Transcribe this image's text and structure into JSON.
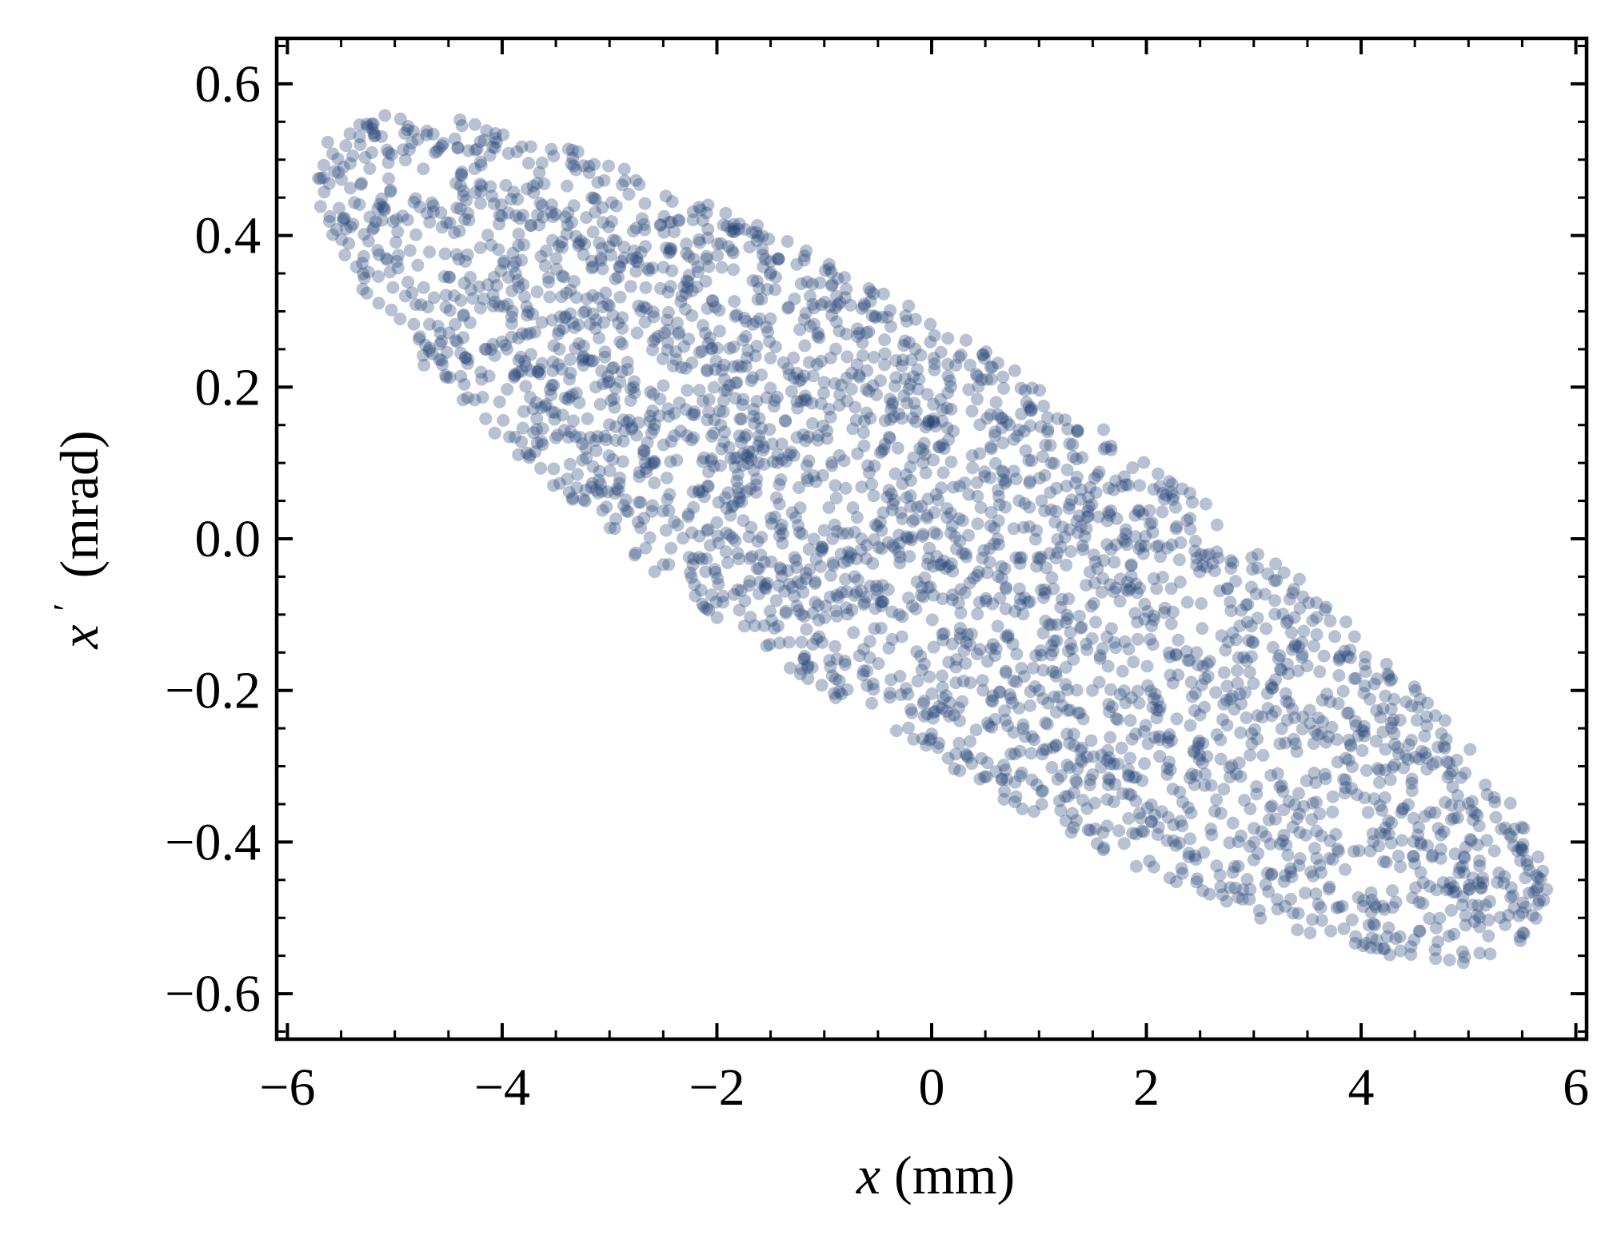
{
  "chart_data": {
    "type": "scatter",
    "title": "",
    "xlabel_symbol": "x",
    "xlabel_unit": "(mm)",
    "ylabel_symbol": "x",
    "ylabel_prime": "′",
    "ylabel_unit": "(mrad)",
    "xlim": [
      -6.1,
      6.1
    ],
    "ylim": [
      -0.66,
      0.66
    ],
    "x_ticks": [
      -6,
      -4,
      -2,
      0,
      2,
      4,
      6
    ],
    "x_tick_labels": [
      "−6",
      "−4",
      "−2",
      "0",
      "2",
      "4",
      "6"
    ],
    "y_ticks": [
      -0.6,
      -0.4,
      -0.2,
      0.0,
      0.2,
      0.4,
      0.6
    ],
    "y_tick_labels": [
      "−0.6",
      "−0.4",
      "−0.2",
      "0.0",
      "0.2",
      "0.4",
      "0.6"
    ],
    "x_minor_step": 0.5,
    "y_minor_step": 0.05,
    "grid": false,
    "legend": "none",
    "point_color": "#1f3f73",
    "point_opacity": 0.32,
    "distribution": {
      "shape": "tilted uniform ellipse",
      "n_points": 3000,
      "x_range_mm": [
        -5.75,
        5.75
      ],
      "xprime_range_mrad": [
        -0.61,
        0.61
      ],
      "correlation_slope_mrad_per_mm": -0.0833,
      "xprime_spread_at_fixed_x_mrad": 0.29
    },
    "points_description": "Points fill a tilted ellipse from (x ≈ −5.7 mm, x′ ≈ +0.5 mrad) at the upper left to (x ≈ +5.7 mm, x′ ≈ −0.5 mrad) at the lower right; the point cloud is not listed point by point and is generated from the distribution parameters."
  }
}
